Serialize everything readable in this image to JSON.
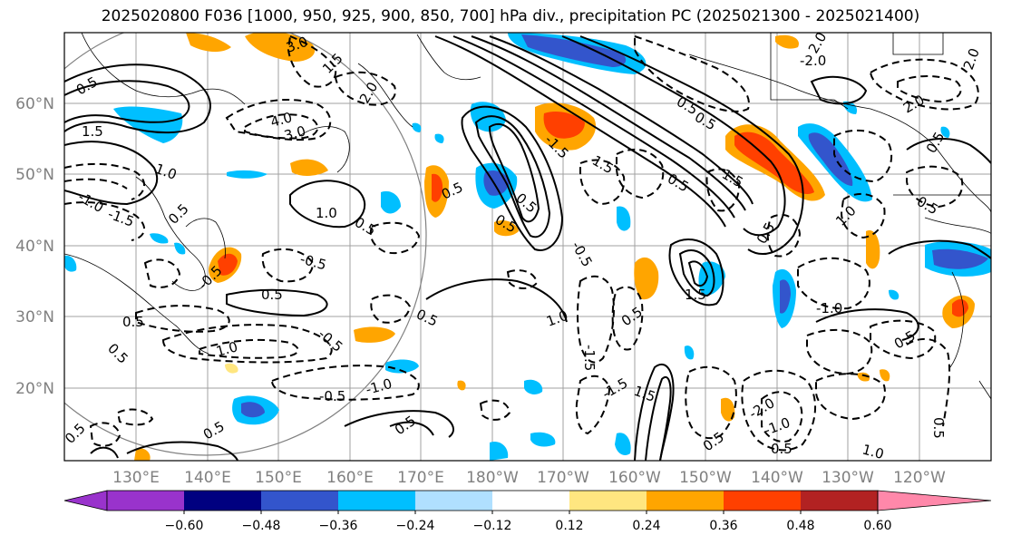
{
  "title": "2025020800 F036 [1000, 950, 925, 900, 850, 700] hPa div., precipitation PC (2025021300 - 2025021400)",
  "map": {
    "lat_labels": [
      "60°N",
      "50°N",
      "40°N",
      "30°N",
      "20°N"
    ],
    "lon_labels": [
      "130°E",
      "140°E",
      "150°E",
      "160°E",
      "170°E",
      "180°W",
      "170°W",
      "160°W",
      "150°W",
      "140°W",
      "130°W",
      "120°W"
    ],
    "gridline_color": "#a0a0a0",
    "label_color": "#808080"
  },
  "colorbar": {
    "ticks": [
      "−0.60",
      "−0.48",
      "−0.36",
      "−0.24",
      "−0.12",
      "0.12",
      "0.24",
      "0.36",
      "0.48",
      "0.60"
    ],
    "colors": [
      "#9933cc",
      "#000080",
      "#3355cc",
      "#00bfff",
      "#b0e0ff",
      "#ffffff",
      "#ffe680",
      "#ffa500",
      "#ff4000",
      "#b22222",
      "#ff88aa"
    ]
  },
  "contour_labels": [
    "0.5",
    "-0.5",
    "1.0",
    "-1.0",
    "1.5",
    "-1.5",
    "2.0",
    "-2.0",
    "3.0",
    "4.0"
  ],
  "colors": {
    "positive": "#ff4000",
    "negative": "#3355cc"
  }
}
